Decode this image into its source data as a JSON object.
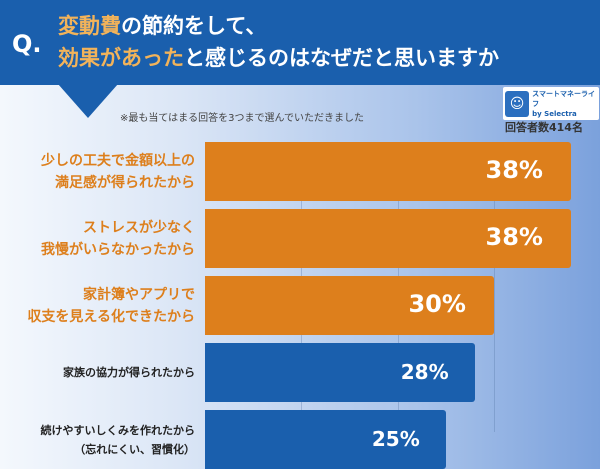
{
  "header": {
    "q": "Q.",
    "title_line1_highlight": "変動費",
    "title_line1_rest": "の節約をして、",
    "title_line2_highlight": "効果があった",
    "title_line2_rest": "と感じるのはなぜだと思いますか"
  },
  "note": "※最も当てはまる回答を3つまで選んでいただきました",
  "logo": {
    "name": "スマートマネーライフ",
    "by": "by Selectra"
  },
  "respondents": "回答者数414名",
  "colors": {
    "header": "#1a5fad",
    "highlight": "#f2b35a",
    "orange_bar": "#dd7f1c",
    "blue_bar": "#1a5fad"
  },
  "chart_data": {
    "type": "bar",
    "orientation": "horizontal",
    "unit": "%",
    "xlim": [
      0,
      38
    ],
    "grid": true,
    "categories": [
      "少しの工夫で金額以上の\n満足感が得られたから",
      "ストレスが少なく\n我慢がいらなかったから",
      "家計簿やアプリで\n収支を見える化できたから",
      "家族の協力が得られたから",
      "続けやすいしくみを作れたから\n（忘れにくい、習慣化）"
    ],
    "values": [
      38,
      38,
      30,
      28,
      25
    ],
    "data_labels": [
      "38%",
      "38%",
      "30%",
      "28%",
      "25%"
    ],
    "bar_colors": [
      "orange",
      "orange",
      "orange",
      "blue",
      "blue"
    ]
  }
}
